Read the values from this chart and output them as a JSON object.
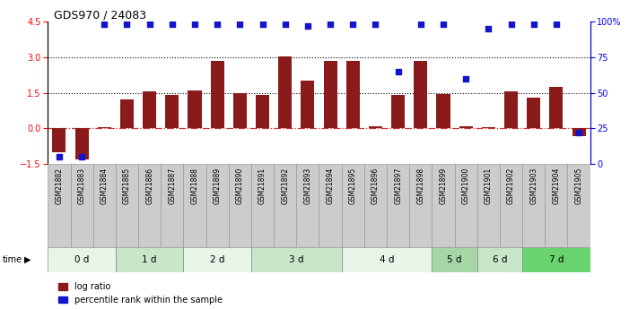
{
  "title": "GDS970 / 24083",
  "samples": [
    "GSM21882",
    "GSM21883",
    "GSM21884",
    "GSM21885",
    "GSM21886",
    "GSM21887",
    "GSM21888",
    "GSM21889",
    "GSM21890",
    "GSM21891",
    "GSM21892",
    "GSM21893",
    "GSM21894",
    "GSM21895",
    "GSM21896",
    "GSM21897",
    "GSM21898",
    "GSM21899",
    "GSM21900",
    "GSM21901",
    "GSM21902",
    "GSM21903",
    "GSM21904",
    "GSM21905"
  ],
  "log_ratio": [
    -1.0,
    -1.3,
    0.05,
    1.2,
    1.55,
    1.4,
    1.6,
    2.85,
    1.5,
    1.4,
    3.05,
    2.0,
    2.85,
    2.85,
    0.1,
    1.4,
    2.85,
    1.45,
    0.1,
    0.05,
    1.55,
    1.3,
    1.75,
    -0.35
  ],
  "percentile_rank_pct": [
    5,
    5,
    98,
    98,
    98,
    98,
    98,
    98,
    98,
    98,
    98,
    97,
    98,
    98,
    98,
    65,
    98,
    98,
    60,
    95,
    98,
    98,
    98,
    22
  ],
  "time_groups": [
    {
      "label": "0 d",
      "start": 0,
      "end": 3,
      "color": "#e8f5e9"
    },
    {
      "label": "1 d",
      "start": 3,
      "end": 6,
      "color": "#c8e6c9"
    },
    {
      "label": "2 d",
      "start": 6,
      "end": 9,
      "color": "#e8f5e9"
    },
    {
      "label": "3 d",
      "start": 9,
      "end": 13,
      "color": "#c8e6c9"
    },
    {
      "label": "4 d",
      "start": 13,
      "end": 17,
      "color": "#e8f5e9"
    },
    {
      "label": "5 d",
      "start": 17,
      "end": 19,
      "color": "#a5d6a7"
    },
    {
      "label": "6 d",
      "start": 19,
      "end": 21,
      "color": "#c8e6c9"
    },
    {
      "label": "7 d",
      "start": 21,
      "end": 24,
      "color": "#69d46e"
    }
  ],
  "ylim_left": [
    -1.5,
    4.5
  ],
  "ylim_right": [
    0,
    100
  ],
  "yticks_left": [
    -1.5,
    0,
    1.5,
    3,
    4.5
  ],
  "yticks_right": [
    0,
    25,
    50,
    75,
    100
  ],
  "hlines": [
    1.5,
    3.0
  ],
  "bar_color": "#8B1a1a",
  "dot_color": "#1414cc",
  "bar_width": 0.6,
  "legend_red": "log ratio",
  "legend_blue": "percentile rank within the sample",
  "background_color": "#ffffff",
  "sample_bg_color": "#cccccc",
  "sample_border_color": "#999999"
}
